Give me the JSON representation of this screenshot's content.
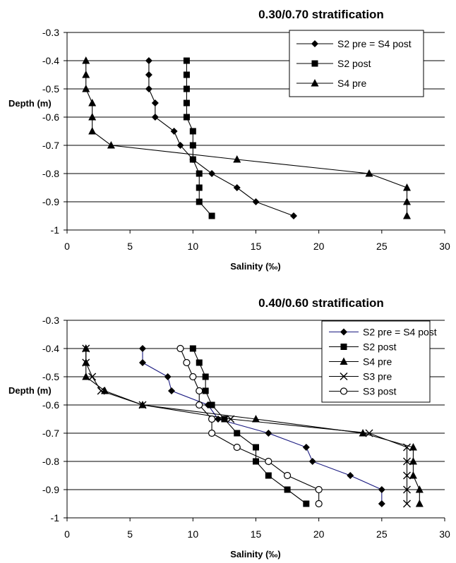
{
  "chart_data": [
    {
      "type": "line",
      "title": "0.30/0.70 stratification",
      "xlabel": "Salinity (‰)",
      "ylabel": "Depth (m)",
      "xlim": [
        0,
        30
      ],
      "ylim": [
        -1,
        -0.3
      ],
      "xticks": [
        "0",
        "5",
        "10",
        "15",
        "20",
        "25",
        "30"
      ],
      "yticks": [
        "-0.3",
        "-0.4",
        "-0.5",
        "-0.6",
        "-0.7",
        "-0.8",
        "-0.9",
        "-1"
      ],
      "grid": "horizontal",
      "legend": "top-right",
      "series": [
        {
          "name": "S2 pre = S4 post",
          "marker": "diamond",
          "color": "#000000",
          "points": [
            [
              6.5,
              -0.4
            ],
            [
              6.5,
              -0.45
            ],
            [
              6.5,
              -0.5
            ],
            [
              7,
              -0.55
            ],
            [
              7,
              -0.6
            ],
            [
              8.5,
              -0.65
            ],
            [
              9,
              -0.7
            ],
            [
              10,
              -0.75
            ],
            [
              11.5,
              -0.8
            ],
            [
              13.5,
              -0.85
            ],
            [
              15,
              -0.9
            ],
            [
              18,
              -0.95
            ]
          ]
        },
        {
          "name": "S2 post",
          "marker": "square",
          "color": "#000000",
          "points": [
            [
              9.5,
              -0.4
            ],
            [
              9.5,
              -0.45
            ],
            [
              9.5,
              -0.5
            ],
            [
              9.5,
              -0.55
            ],
            [
              9.5,
              -0.6
            ],
            [
              10,
              -0.65
            ],
            [
              10,
              -0.7
            ],
            [
              10,
              -0.75
            ],
            [
              10.5,
              -0.8
            ],
            [
              10.5,
              -0.85
            ],
            [
              10.5,
              -0.9
            ],
            [
              11.5,
              -0.95
            ]
          ]
        },
        {
          "name": "S4 pre",
          "marker": "triangle",
          "color": "#000000",
          "points": [
            [
              1.5,
              -0.4
            ],
            [
              1.5,
              -0.45
            ],
            [
              1.5,
              -0.5
            ],
            [
              2,
              -0.55
            ],
            [
              2,
              -0.6
            ],
            [
              2,
              -0.65
            ],
            [
              3.5,
              -0.7
            ],
            [
              13.5,
              -0.75
            ],
            [
              24,
              -0.8
            ],
            [
              27,
              -0.85
            ],
            [
              27,
              -0.9
            ],
            [
              27,
              -0.95
            ]
          ]
        }
      ]
    },
    {
      "type": "line",
      "title": "0.40/0.60 stratification",
      "xlabel": "Salinity (‰)",
      "ylabel": "Depth (m)",
      "xlim": [
        0,
        30
      ],
      "ylim": [
        -1,
        -0.3
      ],
      "xticks": [
        "0",
        "5",
        "10",
        "15",
        "20",
        "25",
        "30"
      ],
      "yticks": [
        "-0.3",
        "-0.4",
        "-0.5",
        "-0.6",
        "-0.7",
        "-0.8",
        "-0.9",
        "-1"
      ],
      "grid": "horizontal",
      "legend": "top-right",
      "series": [
        {
          "name": "S2 pre = S4 post",
          "marker": "diamond",
          "color": "#1a1a80",
          "points": [
            [
              6,
              -0.4
            ],
            [
              6,
              -0.45
            ],
            [
              8,
              -0.5
            ],
            [
              8.3,
              -0.55
            ],
            [
              11.2,
              -0.6
            ],
            [
              12,
              -0.65
            ],
            [
              16,
              -0.7
            ],
            [
              19,
              -0.75
            ],
            [
              19.5,
              -0.8
            ],
            [
              22.5,
              -0.85
            ],
            [
              25,
              -0.9
            ],
            [
              25,
              -0.95
            ]
          ]
        },
        {
          "name": "S2 post",
          "marker": "square",
          "color": "#000000",
          "points": [
            [
              10,
              -0.4
            ],
            [
              10.5,
              -0.45
            ],
            [
              11,
              -0.5
            ],
            [
              11,
              -0.55
            ],
            [
              11.5,
              -0.6
            ],
            [
              12.5,
              -0.65
            ],
            [
              13.5,
              -0.7
            ],
            [
              15,
              -0.75
            ],
            [
              15,
              -0.8
            ],
            [
              16,
              -0.85
            ],
            [
              17.5,
              -0.9
            ],
            [
              19,
              -0.95
            ]
          ]
        },
        {
          "name": "S4 pre",
          "marker": "triangle",
          "color": "#000000",
          "points": [
            [
              1.5,
              -0.4
            ],
            [
              1.5,
              -0.45
            ],
            [
              1.5,
              -0.5
            ],
            [
              3,
              -0.55
            ],
            [
              6,
              -0.6
            ],
            [
              15,
              -0.65
            ],
            [
              23.5,
              -0.7
            ],
            [
              27.5,
              -0.75
            ],
            [
              27.5,
              -0.8
            ],
            [
              27.5,
              -0.85
            ],
            [
              28,
              -0.9
            ],
            [
              28,
              -0.95
            ]
          ]
        },
        {
          "name": "S3 pre",
          "marker": "x",
          "color": "#000000",
          "points": [
            [
              1.5,
              -0.4
            ],
            [
              1.5,
              -0.45
            ],
            [
              2,
              -0.5
            ],
            [
              2.7,
              -0.55
            ],
            [
              6,
              -0.6
            ],
            [
              13,
              -0.65
            ],
            [
              24,
              -0.7
            ],
            [
              27,
              -0.75
            ],
            [
              27,
              -0.8
            ],
            [
              27,
              -0.85
            ],
            [
              27,
              -0.9
            ],
            [
              27,
              -0.95
            ]
          ]
        },
        {
          "name": "S3 post",
          "marker": "circle",
          "color": "#000000",
          "points": [
            [
              9,
              -0.4
            ],
            [
              9.5,
              -0.45
            ],
            [
              10,
              -0.5
            ],
            [
              10.5,
              -0.55
            ],
            [
              10.5,
              -0.6
            ],
            [
              11.5,
              -0.65
            ],
            [
              11.5,
              -0.7
            ],
            [
              13.5,
              -0.75
            ],
            [
              16,
              -0.8
            ],
            [
              17.5,
              -0.85
            ],
            [
              20,
              -0.9
            ],
            [
              20,
              -0.95
            ]
          ]
        }
      ]
    }
  ]
}
